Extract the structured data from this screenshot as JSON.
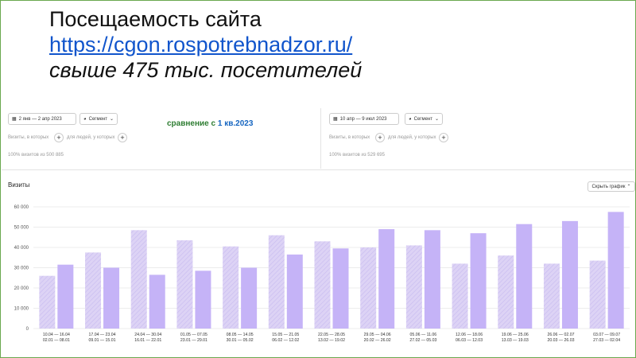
{
  "slide": {
    "title": "Посещаемость сайта",
    "link": "https://cgon.rospotrebnadzor.ru/",
    "subtitle": "свыше 475 тыс. посетителей"
  },
  "panel_left": {
    "date_range": "2 янв — 2 апр 2023",
    "segment": "Сегмент",
    "filter_label_1": "Визиты, в которых",
    "filter_label_2": "для людей, у которых",
    "summary": "100% визитов из 500 885"
  },
  "panel_right": {
    "date_range": "10 апр — 9 июл 2023",
    "segment": "Сегмент",
    "filter_label_1": "Визиты, в которых",
    "filter_label_2": "для людей, у которых",
    "summary": "100% визитов из 529 695"
  },
  "comparison": {
    "prefix": "сравнение  с ",
    "highlight": "1 кв.2023"
  },
  "chart_header": {
    "title": "Визиты",
    "hide_button": "Скрыть график"
  },
  "colors": {
    "hatched_series": "#ddd3f5",
    "solid_series": "#c5b3f7",
    "grid": "#ececec",
    "compare_text": "#2e7d32"
  },
  "icons": {
    "calendar": "calendar-icon",
    "segment": "segment-icon",
    "chevron": "chevron-down-icon",
    "plus": "plus-icon"
  },
  "chart_data": {
    "type": "bar",
    "ylabel": "",
    "ylim": [
      0,
      60000
    ],
    "yticks": [
      "0",
      "10 000",
      "20 000",
      "30 000",
      "40 000",
      "50 000",
      "60 000"
    ],
    "ytick_values": [
      0,
      10000,
      20000,
      30000,
      40000,
      50000,
      60000
    ],
    "grid": true,
    "categories": [
      {
        "a": "10.04 — 16.04",
        "b": "02.01 — 08.01"
      },
      {
        "a": "17.04 — 23.04",
        "b": "09.01 — 15.01"
      },
      {
        "a": "24.04 — 30.04",
        "b": "16.01 — 22.01"
      },
      {
        "a": "01.05 — 07.05",
        "b": "23.01 — 29.01"
      },
      {
        "a": "08.05 — 14.05",
        "b": "30.01 — 05.02"
      },
      {
        "a": "15.05 — 21.05",
        "b": "06.02 — 12.02"
      },
      {
        "a": "22.05 — 28.05",
        "b": "13.02 — 19.02"
      },
      {
        "a": "29.05 — 04.06",
        "b": "20.02 — 26.02"
      },
      {
        "a": "05.06 — 11.06",
        "b": "27.02 — 05.03"
      },
      {
        "a": "12.06 — 18.06",
        "b": "06.03 — 12.03"
      },
      {
        "a": "19.06 — 25.06",
        "b": "13.03 — 19.03"
      },
      {
        "a": "26.06 — 02.07",
        "b": "20.03 — 26.03"
      },
      {
        "a": "03.07 — 09.07",
        "b": "27.03 — 02.04"
      }
    ],
    "series": [
      {
        "style": "hatched",
        "values": [
          26000,
          37500,
          48500,
          43500,
          40500,
          46000,
          43000,
          40000,
          41000,
          32000,
          36000,
          32000,
          33500
        ]
      },
      {
        "style": "solid",
        "values": [
          31500,
          30000,
          26500,
          28500,
          30000,
          36500,
          39500,
          49000,
          48500,
          47000,
          51500,
          53000,
          57500
        ]
      }
    ]
  }
}
